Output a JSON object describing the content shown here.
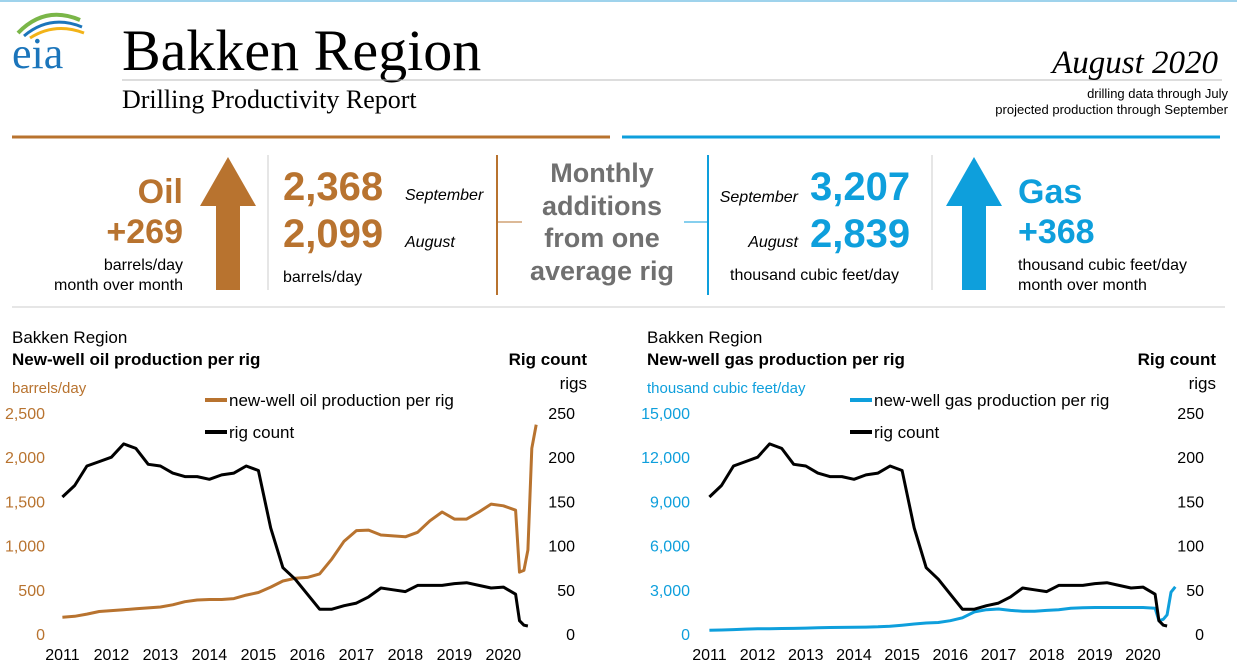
{
  "header": {
    "logo": "eia",
    "title": "Bakken Region",
    "subtitle": "Drilling Productivity Report",
    "date": "August 2020",
    "notes": [
      "drilling data through July",
      "projected production through September"
    ]
  },
  "summary": {
    "oil": {
      "label": "Oil",
      "change": "+269",
      "unit": "barrels/day",
      "period": "month over month",
      "latest": {
        "value": "2,368",
        "month": "September"
      },
      "previous": {
        "value": "2,099",
        "month": "August"
      },
      "level_unit": "barrels/day"
    },
    "middle": [
      "Monthly",
      "additions",
      "from one",
      "average rig"
    ],
    "gas": {
      "label": "Gas",
      "change": "+368",
      "unit": "thousand cubic feet/day",
      "period": "month over month",
      "latest": {
        "value": "3,207",
        "month": "September"
      },
      "previous": {
        "value": "2,839",
        "month": "August"
      },
      "level_unit": "thousand cubic feet/day"
    }
  },
  "chart_data": [
    {
      "type": "line",
      "subtitle": "Bakken Region",
      "title": "New-well oil production per rig",
      "y_label": "barrels/day",
      "y2_title": "Rig count",
      "y2_label": "rigs",
      "grid": false,
      "x": [
        2011,
        2011.25,
        2011.5,
        2011.75,
        2012,
        2012.25,
        2012.5,
        2012.75,
        2013,
        2013.25,
        2013.5,
        2013.75,
        2014,
        2014.25,
        2014.5,
        2014.75,
        2015,
        2015.25,
        2015.5,
        2015.75,
        2016,
        2016.25,
        2016.5,
        2016.75,
        2017,
        2017.25,
        2017.5,
        2017.75,
        2018,
        2018.25,
        2018.5,
        2018.75,
        2019,
        2019.25,
        2019.5,
        2019.75,
        2020,
        2020.25,
        2020.33,
        2020.42,
        2020.5,
        2020.58,
        2020.67
      ],
      "series": [
        {
          "name": "new-well oil production per rig",
          "color": "#b8732f",
          "axis": "y",
          "values": [
            190,
            200,
            225,
            255,
            265,
            275,
            285,
            295,
            305,
            330,
            365,
            385,
            390,
            390,
            400,
            440,
            470,
            530,
            600,
            630,
            640,
            680,
            850,
            1050,
            1170,
            1175,
            1120,
            1110,
            1100,
            1150,
            1280,
            1380,
            1300,
            1300,
            1380,
            1470,
            1450,
            1400,
            700,
            720,
            950,
            2099,
            2368
          ]
        },
        {
          "name": "rig count",
          "color": "#000000",
          "axis": "y2",
          "values": [
            155,
            168,
            190,
            195,
            200,
            215,
            210,
            192,
            190,
            182,
            178,
            178,
            175,
            180,
            182,
            190,
            185,
            120,
            75,
            62,
            45,
            28,
            28,
            32,
            35,
            42,
            52,
            50,
            48,
            55,
            55,
            55,
            57,
            58,
            55,
            52,
            53,
            45,
            15,
            10,
            9,
            null,
            null
          ]
        }
      ],
      "xlim": [
        2010.95,
        2020.85
      ],
      "xticks": [
        2011,
        2012,
        2013,
        2014,
        2015,
        2016,
        2017,
        2018,
        2019,
        2020
      ],
      "ylim": [
        0,
        2500
      ],
      "yticks": [
        0,
        500,
        {
          "value": 1000,
          "label": "1,000"
        },
        {
          "value": 1500,
          "label": "1,500"
        },
        {
          "value": 2000,
          "label": "2,000"
        },
        {
          "value": 2500,
          "label": "2,500"
        }
      ],
      "y2lim": [
        0,
        250
      ],
      "y2ticks": [
        0,
        50,
        100,
        150,
        200,
        250
      ]
    },
    {
      "type": "line",
      "subtitle": "Bakken Region",
      "title": "New-well gas production per rig",
      "y_label": "thousand cubic feet/day",
      "y2_title": "Rig count",
      "y2_label": "rigs",
      "grid": false,
      "x": [
        2011,
        2011.25,
        2011.5,
        2011.75,
        2012,
        2012.25,
        2012.5,
        2012.75,
        2013,
        2013.25,
        2013.5,
        2013.75,
        2014,
        2014.25,
        2014.5,
        2014.75,
        2015,
        2015.25,
        2015.5,
        2015.75,
        2016,
        2016.25,
        2016.5,
        2016.75,
        2017,
        2017.25,
        2017.5,
        2017.75,
        2018,
        2018.25,
        2018.5,
        2018.75,
        2019,
        2019.25,
        2019.5,
        2019.75,
        2020,
        2020.25,
        2020.33,
        2020.42,
        2020.5,
        2020.58,
        2020.67
      ],
      "series": [
        {
          "name": "new-well gas production per rig",
          "color": "#0e9fdc",
          "axis": "y",
          "values": [
            250,
            270,
            300,
            330,
            350,
            360,
            370,
            380,
            400,
            420,
            440,
            450,
            460,
            470,
            490,
            530,
            600,
            680,
            750,
            780,
            900,
            1100,
            1500,
            1650,
            1700,
            1600,
            1550,
            1550,
            1600,
            1650,
            1750,
            1780,
            1800,
            1800,
            1800,
            1800,
            1800,
            1750,
            900,
            1000,
            1300,
            2839,
            3207
          ]
        },
        {
          "name": "rig count",
          "color": "#000000",
          "axis": "y2",
          "values": [
            155,
            168,
            190,
            195,
            200,
            215,
            210,
            192,
            190,
            182,
            178,
            178,
            175,
            180,
            182,
            190,
            185,
            120,
            75,
            62,
            45,
            28,
            28,
            32,
            35,
            42,
            52,
            50,
            48,
            55,
            55,
            55,
            57,
            58,
            55,
            52,
            53,
            45,
            15,
            10,
            9,
            null,
            null
          ]
        }
      ],
      "xlim": [
        2010.95,
        2020.85
      ],
      "xticks": [
        2011,
        2012,
        2013,
        2014,
        2015,
        2016,
        2017,
        2018,
        2019,
        2020
      ],
      "ylim": [
        0,
        15000
      ],
      "yticks": [
        0,
        {
          "value": 3000,
          "label": "3,000"
        },
        {
          "value": 6000,
          "label": "6,000"
        },
        {
          "value": 9000,
          "label": "9,000"
        },
        {
          "value": 12000,
          "label": "12,000"
        },
        {
          "value": 15000,
          "label": "15,000"
        }
      ],
      "y2lim": [
        0,
        250
      ],
      "y2ticks": [
        0,
        50,
        100,
        150,
        200,
        250
      ]
    }
  ]
}
